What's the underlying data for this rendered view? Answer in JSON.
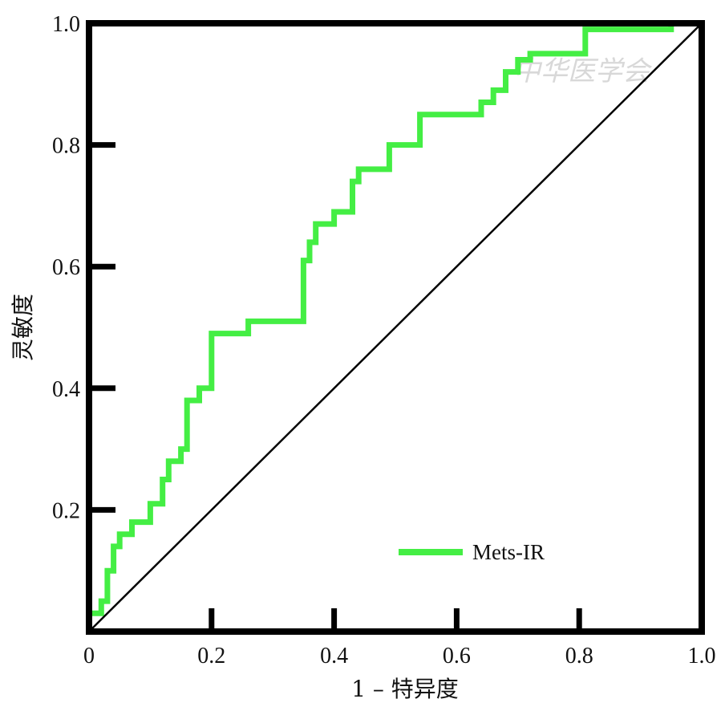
{
  "chart_data": {
    "type": "line",
    "title": "",
    "xlabel": "1 – 特异度",
    "ylabel": "灵敏度",
    "xlim": [
      0,
      1
    ],
    "ylim": [
      0,
      1
    ],
    "x_ticks": [
      "0",
      "0.2",
      "0.4",
      "0.6",
      "0.8",
      "1.0"
    ],
    "y_ticks": [
      "0.2",
      "0.4",
      "0.6",
      "0.8",
      "1.0"
    ],
    "grid": false,
    "legend_position": "bottom-right",
    "series": [
      {
        "name": "Mets-IR",
        "color": "#44ee44",
        "x": [
          0,
          0,
          0.02,
          0.02,
          0.03,
          0.03,
          0.04,
          0.04,
          0.05,
          0.05,
          0.07,
          0.07,
          0.1,
          0.1,
          0.12,
          0.12,
          0.13,
          0.13,
          0.15,
          0.15,
          0.16,
          0.16,
          0.18,
          0.18,
          0.2,
          0.2,
          0.26,
          0.26,
          0.35,
          0.35,
          0.36,
          0.36,
          0.37,
          0.37,
          0.4,
          0.4,
          0.43,
          0.43,
          0.44,
          0.44,
          0.49,
          0.49,
          0.54,
          0.54,
          0.64,
          0.64,
          0.66,
          0.66,
          0.68,
          0.68,
          0.7,
          0.7,
          0.72,
          0.72,
          0.81,
          0.81,
          0.95,
          0.95,
          1.0
        ],
        "y": [
          0,
          0.03,
          0.03,
          0.05,
          0.05,
          0.1,
          0.1,
          0.14,
          0.14,
          0.16,
          0.16,
          0.18,
          0.18,
          0.21,
          0.21,
          0.25,
          0.25,
          0.28,
          0.28,
          0.3,
          0.3,
          0.38,
          0.38,
          0.4,
          0.4,
          0.49,
          0.49,
          0.51,
          0.51,
          0.61,
          0.61,
          0.64,
          0.64,
          0.67,
          0.67,
          0.69,
          0.69,
          0.74,
          0.74,
          0.76,
          0.76,
          0.8,
          0.8,
          0.85,
          0.85,
          0.87,
          0.87,
          0.89,
          0.89,
          0.92,
          0.92,
          0.94,
          0.94,
          0.95,
          0.95,
          0.99,
          0.99,
          1.0,
          1.0
        ]
      },
      {
        "name": "",
        "color": "#000000",
        "x": [
          0,
          1
        ],
        "y": [
          0,
          1
        ]
      }
    ]
  },
  "watermark": {
    "text": "中华医学会"
  }
}
